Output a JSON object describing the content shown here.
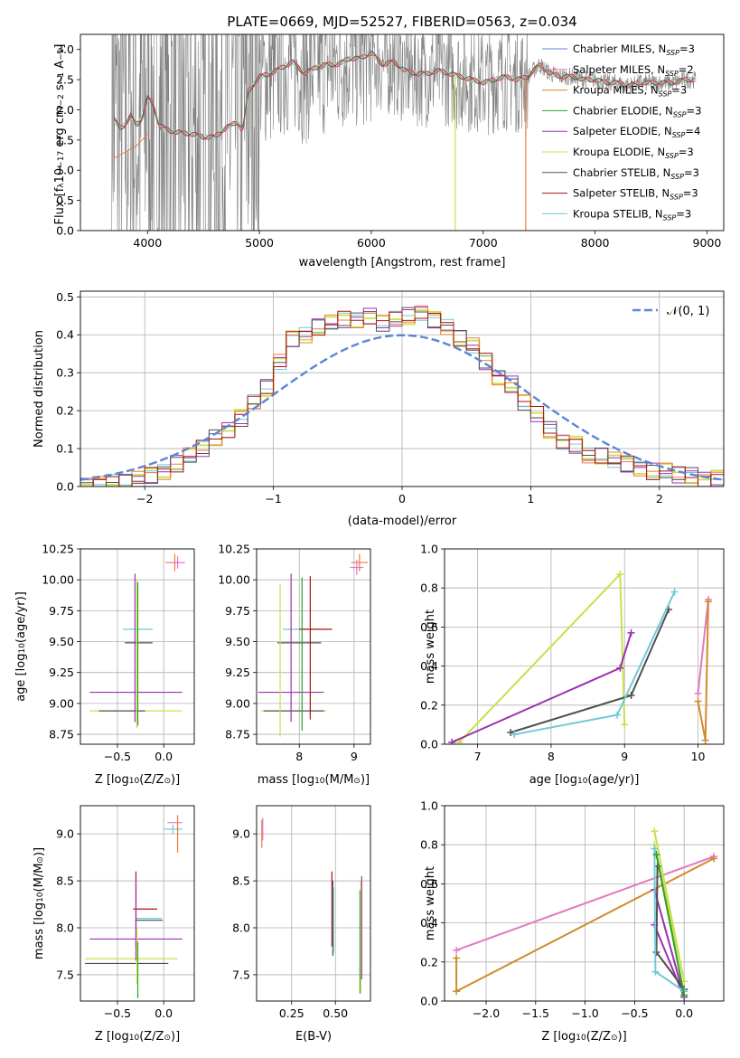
{
  "figure": {
    "title": "PLATE=0669, MJD=52527, FIBERID=0563, z=0.034"
  },
  "colors": {
    "data": "#808080",
    "chabrier_miles": "#5c85d6",
    "salpeter_miles": "#e377c2",
    "kroupa_miles": "#d08b2c",
    "chabrier_elodie": "#2ca02c",
    "salpeter_elodie": "#9b30b0",
    "kroupa_elodie": "#c8e04a",
    "chabrier_stelib": "#505050",
    "salpeter_stelib": "#b01010",
    "kroupa_stelib": "#70c8d8",
    "orange": "#f07840",
    "gauss": "#5c85d6"
  },
  "chart_data": [
    {
      "id": "spectrum",
      "type": "line",
      "xlabel": "wavelength [Angstrom, rest frame]",
      "ylabel_parts": [
        "Flux [",
        "f",
        "λ",
        "10",
        "−17",
        " erg cm",
        "−2",
        " s",
        "−1",
        " A",
        "−1",
        "]"
      ],
      "xlim": [
        3400,
        9150
      ],
      "ylim": [
        0,
        3.25
      ],
      "xticks": [
        4000,
        5000,
        6000,
        7000,
        8000,
        9000
      ],
      "yticks": [
        0.0,
        0.5,
        1.0,
        1.5,
        2.0,
        2.5,
        3.0
      ],
      "legend_position": "top-right",
      "legend": [
        {
          "text": "Chabrier MILES, N",
          "sub": "SSP",
          "tail": "=3",
          "color_key": "chabrier_miles"
        },
        {
          "text": "Salpeter MILES, N",
          "sub": "SSP",
          "tail": "=2",
          "color_key": "salpeter_miles"
        },
        {
          "text": "Kroupa MILES, N",
          "sub": "SSP",
          "tail": "=3",
          "color_key": "kroupa_miles"
        },
        {
          "text": "Chabrier ELODIE, N",
          "sub": "SSP",
          "tail": "=3",
          "color_key": "chabrier_elodie"
        },
        {
          "text": "Salpeter ELODIE, N",
          "sub": "SSP",
          "tail": "=4",
          "color_key": "salpeter_elodie"
        },
        {
          "text": "Kroupa ELODIE, N",
          "sub": "SSP",
          "tail": "=3",
          "color_key": "kroupa_elodie"
        },
        {
          "text": "Chabrier STELIB, N",
          "sub": "SSP",
          "tail": "=3",
          "color_key": "chabrier_stelib"
        },
        {
          "text": "Salpeter STELIB, N",
          "sub": "SSP",
          "tail": "=3",
          "color_key": "salpeter_stelib"
        },
        {
          "text": "Kroupa STELIB, N",
          "sub": "SSP",
          "tail": "=3",
          "color_key": "kroupa_stelib"
        }
      ],
      "model_curve": {
        "x": [
          3700,
          3750,
          3800,
          3850,
          3900,
          3950,
          4000,
          4050,
          4100,
          4200,
          4300,
          4400,
          4500,
          4600,
          4700,
          4800,
          4850,
          4900,
          5000,
          5100,
          5200,
          5300,
          5400,
          5500,
          5600,
          5700,
          5800,
          5900,
          6000,
          6100,
          6200,
          6300,
          6400,
          6500,
          6600,
          6700,
          6800,
          6900,
          7000,
          7100,
          7200,
          7300,
          7400,
          7500,
          7600,
          7700,
          7800,
          7900,
          8000,
          8100,
          8200,
          8300,
          8400,
          8500,
          8600,
          8700,
          8800,
          8900
        ],
        "y": [
          1.85,
          1.7,
          1.75,
          1.9,
          1.75,
          1.85,
          2.2,
          2.1,
          1.75,
          1.65,
          1.62,
          1.6,
          1.55,
          1.55,
          1.7,
          1.8,
          1.65,
          2.3,
          2.55,
          2.6,
          2.7,
          2.8,
          2.6,
          2.7,
          2.75,
          2.75,
          2.85,
          2.85,
          2.95,
          2.75,
          2.8,
          2.65,
          2.6,
          2.6,
          2.65,
          2.6,
          2.55,
          2.5,
          2.45,
          2.5,
          2.55,
          2.5,
          2.55,
          2.75,
          2.6,
          2.55,
          2.55,
          2.5,
          2.5,
          2.45,
          2.45,
          2.4,
          2.45,
          2.45,
          2.45,
          2.45,
          2.5,
          2.5
        ]
      },
      "orange_low": {
        "x": [
          3700,
          3750,
          3800,
          3850,
          3900,
          3950,
          4000
        ],
        "y": [
          1.2,
          1.25,
          1.3,
          1.35,
          1.4,
          1.5,
          1.6
        ]
      },
      "drops": [
        {
          "x": 6750,
          "color_key": "kroupa_elodie"
        },
        {
          "x": 7380,
          "color_key": "orange"
        }
      ]
    },
    {
      "id": "residuals",
      "type": "bar",
      "xlabel": "(data-model)/error",
      "ylabel": "Normed distribution",
      "xlim": [
        -2.5,
        2.5
      ],
      "ylim": [
        0,
        0.515
      ],
      "xticks": [
        -2,
        -1,
        0,
        1,
        2
      ],
      "yticks": [
        0.0,
        0.1,
        0.2,
        0.3,
        0.4,
        0.5
      ],
      "legend_position": "top-right",
      "legend": [
        {
          "text": "𝒩(0, 1)",
          "color_key": "gauss"
        }
      ],
      "bin_edges": [
        -2.5,
        -2.4,
        -2.3,
        -2.2,
        -2.1,
        -2.0,
        -1.9,
        -1.8,
        -1.7,
        -1.6,
        -1.5,
        -1.4,
        -1.3,
        -1.2,
        -1.1,
        -1.0,
        -0.9,
        -0.8,
        -0.7,
        -0.6,
        -0.5,
        -0.4,
        -0.3,
        -0.2,
        -0.1,
        0.0,
        0.1,
        0.2,
        0.3,
        0.4,
        0.5,
        0.6,
        0.7,
        0.8,
        0.9,
        1.0,
        1.1,
        1.2,
        1.3,
        1.4,
        1.5,
        1.6,
        1.7,
        1.8,
        1.9,
        2.0,
        2.1,
        2.2,
        2.3,
        2.4,
        2.5
      ],
      "hist": [
        0.005,
        0.005,
        0.01,
        0.01,
        0.02,
        0.03,
        0.04,
        0.06,
        0.08,
        0.1,
        0.13,
        0.15,
        0.18,
        0.22,
        0.26,
        0.33,
        0.39,
        0.4,
        0.42,
        0.43,
        0.44,
        0.44,
        0.45,
        0.43,
        0.44,
        0.45,
        0.46,
        0.44,
        0.42,
        0.39,
        0.37,
        0.33,
        0.29,
        0.27,
        0.22,
        0.19,
        0.15,
        0.12,
        0.11,
        0.08,
        0.08,
        0.07,
        0.06,
        0.05,
        0.04,
        0.04,
        0.03,
        0.03,
        0.02,
        0.02
      ]
    },
    {
      "id": "age-vs-Z",
      "type": "scatter",
      "xlabel": "Z [log10(Z/Z☉)]",
      "xlabel_parts": [
        "Z [log",
        "10",
        "(Z/Z",
        "⊙",
        ")]"
      ],
      "ylabel_parts": [
        "age  [log",
        "10",
        "(age/yr)]"
      ],
      "xlim": [
        -0.9,
        0.33
      ],
      "ylim": [
        8.67,
        10.25
      ],
      "xticks": [
        -0.5,
        0.0
      ],
      "yticks": [
        8.75,
        9.0,
        9.25,
        9.5,
        9.75,
        10.0,
        10.25
      ],
      "errorbars": [
        {
          "x": -0.28,
          "y": 9.6,
          "xerr": 0.16,
          "yerr": 0,
          "color_key": "kroupa_stelib"
        },
        {
          "x": -0.27,
          "y": 9.49,
          "xerr": 0.15,
          "yerr": 0,
          "color_key": "chabrier_stelib"
        },
        {
          "x": -0.3,
          "y": 9.09,
          "xerr": 0.5,
          "yerr": 0,
          "color_key": "salpeter_elodie"
        },
        {
          "x": -0.3,
          "y": 8.94,
          "xerr": 0.5,
          "yerr": 0,
          "color_key": "kroupa_elodie"
        },
        {
          "x": -0.45,
          "y": 8.94,
          "xerr": 0.25,
          "yerr": 0,
          "color_key": "chabrier_stelib"
        },
        {
          "x": -0.31,
          "y": 9.45,
          "xerr": 0,
          "yerr": 0.6,
          "color_key": "salpeter_elodie"
        },
        {
          "x": -0.29,
          "y": 9.4,
          "xerr": 0,
          "yerr": 0.6,
          "color_key": "kroupa_elodie"
        },
        {
          "x": -0.28,
          "y": 9.4,
          "xerr": 0,
          "yerr": 0.58,
          "color_key": "chabrier_elodie"
        },
        {
          "x": 0.12,
          "y": 10.14,
          "xerr": 0.1,
          "yerr": 0.07,
          "color_key": "orange"
        },
        {
          "x": 0.15,
          "y": 10.14,
          "xerr": 0.08,
          "yerr": 0.05,
          "color_key": "salpeter_miles"
        }
      ]
    },
    {
      "id": "age-vs-mass",
      "type": "scatter",
      "xlabel_parts": [
        "mass [log",
        "10",
        "(M/M",
        "⊙",
        ")]"
      ],
      "xlim": [
        7.22,
        9.3
      ],
      "ylim": [
        8.67,
        10.25
      ],
      "xticks": [
        7,
        8,
        9
      ],
      "yticks": [
        8.75,
        9.0,
        9.25,
        9.5,
        9.75,
        10.0,
        10.25
      ],
      "errorbars": [
        {
          "x": 8.05,
          "y": 9.6,
          "xerr": 0.35,
          "yerr": 0,
          "color_key": "kroupa_stelib"
        },
        {
          "x": 8.3,
          "y": 9.6,
          "xerr": 0.3,
          "yerr": 0,
          "color_key": "salpeter_stelib"
        },
        {
          "x": 8.0,
          "y": 9.49,
          "xerr": 0.4,
          "yerr": 0,
          "color_key": "chabrier_stelib"
        },
        {
          "x": 7.85,
          "y": 9.09,
          "xerr": 0.6,
          "yerr": 0,
          "color_key": "salpeter_elodie"
        },
        {
          "x": 7.9,
          "y": 8.94,
          "xerr": 0.6,
          "yerr": 0,
          "color_key": "kroupa_elodie"
        },
        {
          "x": 7.9,
          "y": 8.94,
          "xerr": 0.55,
          "yerr": 0,
          "color_key": "chabrier_stelib"
        },
        {
          "x": 7.65,
          "y": 9.35,
          "xerr": 0,
          "yerr": 0.62,
          "color_key": "kroupa_elodie"
        },
        {
          "x": 7.85,
          "y": 9.45,
          "xerr": 0,
          "yerr": 0.6,
          "color_key": "salpeter_elodie"
        },
        {
          "x": 8.05,
          "y": 9.4,
          "xerr": 0,
          "yerr": 0.62,
          "color_key": "chabrier_elodie"
        },
        {
          "x": 8.2,
          "y": 9.45,
          "xerr": 0,
          "yerr": 0.58,
          "color_key": "salpeter_stelib"
        },
        {
          "x": 9.1,
          "y": 10.14,
          "xerr": 0.15,
          "yerr": 0.07,
          "color_key": "orange"
        },
        {
          "x": 9.05,
          "y": 10.1,
          "xerr": 0.12,
          "yerr": 0.06,
          "color_key": "salpeter_miles"
        }
      ]
    },
    {
      "id": "massweight-vs-age",
      "type": "line",
      "xlabel_parts": [
        "age  [log",
        "10",
        "(age/yr)]"
      ],
      "ylabel": "mass weight",
      "xlim": [
        6.55,
        10.35
      ],
      "ylim": [
        0,
        1.0
      ],
      "xticks": [
        7,
        8,
        9,
        10
      ],
      "yticks": [
        0.0,
        0.2,
        0.4,
        0.6,
        0.8,
        1.0
      ],
      "series": [
        {
          "color_key": "kroupa_elodie",
          "x": [
            6.75,
            8.94,
            9.0
          ],
          "y": [
            0.01,
            0.87,
            0.1
          ]
        },
        {
          "color_key": "salpeter_elodie",
          "x": [
            6.65,
            8.94,
            9.09
          ],
          "y": [
            0.01,
            0.39,
            0.57
          ]
        },
        {
          "color_key": "chabrier_stelib",
          "x": [
            7.45,
            9.09,
            9.6
          ],
          "y": [
            0.06,
            0.25,
            0.69
          ]
        },
        {
          "color_key": "kroupa_stelib",
          "x": [
            7.5,
            8.9,
            9.68
          ],
          "y": [
            0.05,
            0.15,
            0.78
          ]
        },
        {
          "color_key": "salpeter_miles",
          "x": [
            10.0,
            10.14
          ],
          "y": [
            0.26,
            0.74
          ]
        },
        {
          "color_key": "kroupa_miles",
          "x": [
            10.0,
            10.1,
            10.14
          ],
          "y": [
            0.22,
            0.02,
            0.73
          ]
        }
      ]
    },
    {
      "id": "mass-vs-Z",
      "type": "scatter",
      "xlabel_parts": [
        "Z [log",
        "10",
        "(Z/Z",
        "⊙",
        ")]"
      ],
      "ylabel_parts": [
        "mass [log",
        "10",
        "(M/M",
        "⊙",
        ")]"
      ],
      "xlim": [
        -0.9,
        0.33
      ],
      "ylim": [
        7.22,
        9.3
      ],
      "xticks": [
        -0.5,
        0.0
      ],
      "yticks": [
        7.5,
        8.0,
        8.5,
        9.0
      ],
      "errorbars": [
        {
          "x": 0.12,
          "y": 9.12,
          "xerr": 0.08,
          "yerr": 0,
          "color_key": "salpeter_miles"
        },
        {
          "x": 0.1,
          "y": 9.05,
          "xerr": 0.1,
          "yerr": 0.05,
          "color_key": "kroupa_stelib"
        },
        {
          "x": 0.15,
          "y": 9.0,
          "xerr": 0,
          "yerr": 0.2,
          "color_key": "orange"
        },
        {
          "x": -0.2,
          "y": 8.2,
          "xerr": 0.13,
          "yerr": 0,
          "color_key": "salpeter_stelib"
        },
        {
          "x": -0.16,
          "y": 8.1,
          "xerr": 0.14,
          "yerr": 0,
          "color_key": "kroupa_stelib"
        },
        {
          "x": -0.16,
          "y": 8.08,
          "xerr": 0.15,
          "yerr": 0,
          "color_key": "chabrier_stelib"
        },
        {
          "x": -0.3,
          "y": 7.88,
          "xerr": 0.5,
          "yerr": 0,
          "color_key": "salpeter_elodie"
        },
        {
          "x": -0.35,
          "y": 7.67,
          "xerr": 0.5,
          "yerr": 0,
          "color_key": "kroupa_elodie"
        },
        {
          "x": -0.4,
          "y": 7.62,
          "xerr": 0.45,
          "yerr": 0,
          "color_key": "chabrier_stelib"
        },
        {
          "x": -0.3,
          "y": 8.2,
          "xerr": 0,
          "yerr": 0.4,
          "color_key": "salpeter_stelib"
        },
        {
          "x": -0.3,
          "y": 8.1,
          "xerr": 0,
          "yerr": 0.45,
          "color_key": "salpeter_elodie"
        },
        {
          "x": -0.28,
          "y": 7.55,
          "xerr": 0,
          "yerr": 0.3,
          "color_key": "chabrier_elodie"
        },
        {
          "x": -0.29,
          "y": 7.7,
          "xerr": 0,
          "yerr": 0.3,
          "color_key": "kroupa_elodie"
        }
      ]
    },
    {
      "id": "mass-vs-EBV",
      "type": "scatter",
      "xlabel": "E(B-V)",
      "xlim": [
        0.05,
        0.7
      ],
      "ylim": [
        7.22,
        9.3
      ],
      "xticks": [
        0.25,
        0.5
      ],
      "yticks": [
        7.5,
        8.0,
        8.5,
        9.0
      ],
      "errorbars": [
        {
          "x": 0.08,
          "y": 9.0,
          "xerr": 0,
          "yerr": 0.15,
          "color_key": "orange"
        },
        {
          "x": 0.085,
          "y": 9.05,
          "xerr": 0,
          "yerr": 0.12,
          "color_key": "salpeter_miles"
        },
        {
          "x": 0.48,
          "y": 8.2,
          "xerr": 0,
          "yerr": 0.4,
          "color_key": "salpeter_stelib"
        },
        {
          "x": 0.485,
          "y": 8.1,
          "xerr": 0,
          "yerr": 0.4,
          "color_key": "chabrier_stelib"
        },
        {
          "x": 0.49,
          "y": 8.08,
          "xerr": 0,
          "yerr": 0.35,
          "color_key": "kroupa_stelib"
        },
        {
          "x": 0.64,
          "y": 7.85,
          "xerr": 0,
          "yerr": 0.55,
          "color_key": "chabrier_elodie"
        },
        {
          "x": 0.645,
          "y": 7.9,
          "xerr": 0,
          "yerr": 0.6,
          "color_key": "kroupa_elodie"
        },
        {
          "x": 0.65,
          "y": 8.0,
          "xerr": 0,
          "yerr": 0.55,
          "color_key": "salpeter_elodie"
        }
      ]
    },
    {
      "id": "massweight-vs-Z",
      "type": "line",
      "xlabel_parts": [
        "Z [log",
        "10",
        "(Z/Z",
        "⊙",
        ")]"
      ],
      "ylabel": "mass weight",
      "xlim": [
        -2.42,
        0.4
      ],
      "ylim": [
        0,
        1.0
      ],
      "xticks": [
        -2.0,
        -1.5,
        -1.0,
        -0.5,
        0.0
      ],
      "yticks": [
        0.0,
        0.2,
        0.4,
        0.6,
        0.8,
        1.0
      ],
      "series": [
        {
          "color_key": "salpeter_miles",
          "x": [
            -2.3,
            0.3
          ],
          "y": [
            0.26,
            0.74
          ]
        },
        {
          "color_key": "kroupa_miles",
          "x": [
            -2.3,
            -2.3,
            0.3
          ],
          "y": [
            0.22,
            0.05,
            0.73
          ]
        },
        {
          "color_key": "kroupa_elodie",
          "x": [
            -0.3,
            0.0,
            -0.3
          ],
          "y": [
            0.87,
            0.1,
            0.8
          ]
        },
        {
          "color_key": "salpeter_elodie",
          "x": [
            -0.3,
            0.0,
            -0.3
          ],
          "y": [
            0.57,
            0.02,
            0.39
          ]
        },
        {
          "color_key": "chabrier_stelib",
          "x": [
            -0.27,
            -0.28,
            0.0
          ],
          "y": [
            0.69,
            0.25,
            0.06
          ]
        },
        {
          "color_key": "kroupa_stelib",
          "x": [
            -0.3,
            -0.29,
            0.0
          ],
          "y": [
            0.78,
            0.15,
            0.05
          ]
        },
        {
          "color_key": "chabrier_elodie",
          "x": [
            -0.28,
            0.0
          ],
          "y": [
            0.75,
            0.03
          ]
        }
      ]
    }
  ]
}
